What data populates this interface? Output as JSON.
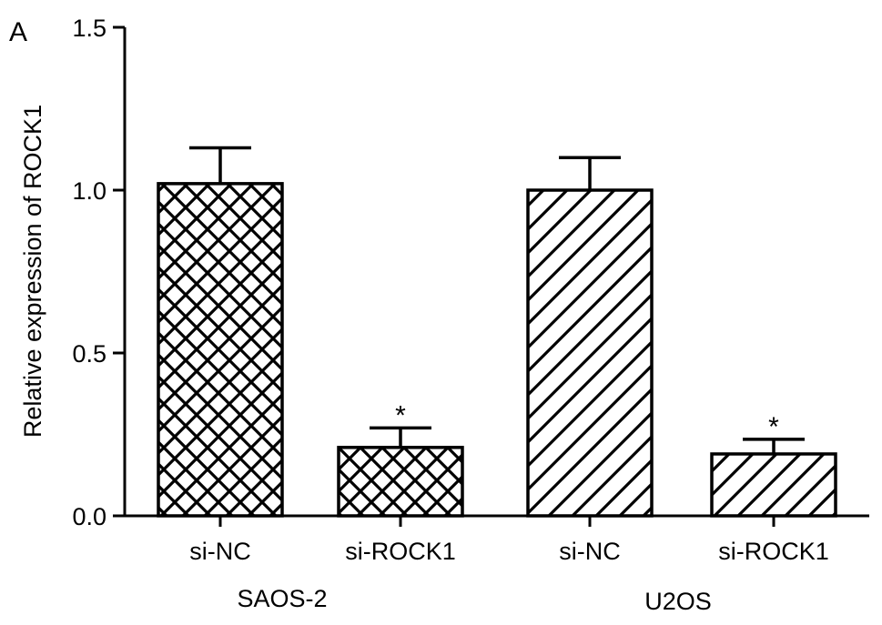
{
  "panel_label": "A",
  "chart_data": {
    "type": "bar",
    "ylabel": "Relative expression of ROCK1",
    "xlabel": "",
    "ylim": [
      0,
      1.5
    ],
    "yticks": [
      0.0,
      0.5,
      1.0,
      1.5
    ],
    "ytick_labels": [
      "0.0",
      "0.5",
      "1.0",
      "1.5"
    ],
    "categories": [
      "si-NC",
      "si-ROCK1",
      "si-NC",
      "si-ROCK1"
    ],
    "groups": [
      {
        "label": "SAOS-2",
        "categories": [
          0,
          1
        ],
        "pattern": "crosshatch"
      },
      {
        "label": "U2OS",
        "categories": [
          2,
          3
        ],
        "pattern": "diagonal"
      }
    ],
    "values": [
      1.02,
      0.21,
      1.0,
      0.19
    ],
    "errors": [
      0.11,
      0.06,
      0.1,
      0.045
    ],
    "significance": [
      "",
      "*",
      "",
      "*"
    ],
    "grid": false,
    "legend": "none"
  }
}
